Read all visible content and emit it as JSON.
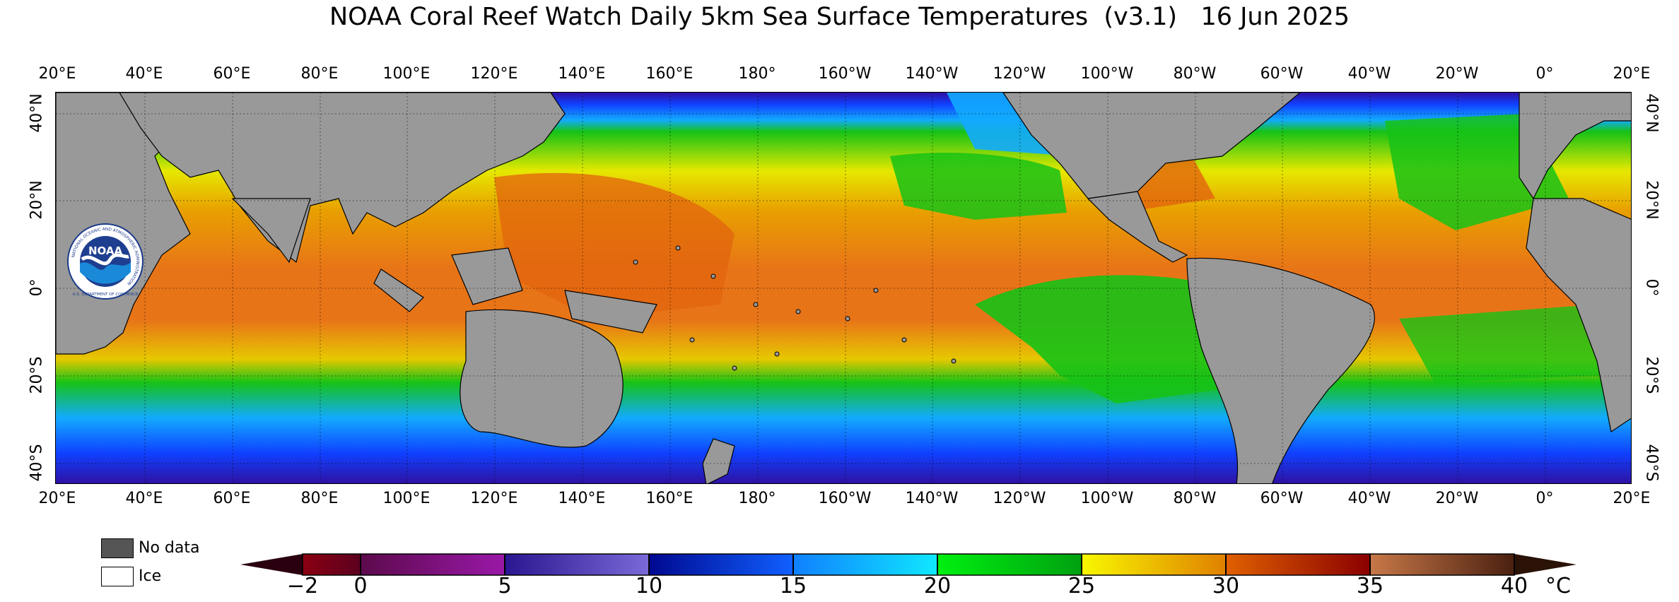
{
  "title": "NOAA Coral Reef Watch Daily 5km Sea Surface Temperatures  (v3.1)   16 Jun 2025",
  "longitude_labels": [
    "20°E",
    "40°E",
    "60°E",
    "80°E",
    "100°E",
    "120°E",
    "140°E",
    "160°E",
    "180°",
    "160°W",
    "140°W",
    "120°W",
    "100°W",
    "80°W",
    "60°W",
    "40°W",
    "20°W",
    "0°",
    "20°E"
  ],
  "latitude_labels": [
    "40°N",
    "20°N",
    "0°",
    "20°S",
    "40°S"
  ],
  "legend": {
    "no_data_label": "No data",
    "no_data_color": "#555555",
    "ice_label": "Ice",
    "ice_color": "#ffffff"
  },
  "colorbar": {
    "tick_labels": [
      "−2",
      "0",
      "5",
      "10",
      "15",
      "20",
      "25",
      "30",
      "35",
      "40"
    ],
    "unit": "°C",
    "colors": {
      "below_min": "#2a0010",
      "m2_0": "#6a0018",
      "0_5": "#7a1488",
      "5_10": "#5a4ccc",
      "10_15": "#0018d8",
      "15_20": "#14c8ff",
      "20_25": "#00cc10",
      "25_30": "#e8b000",
      "30_35": "#cc2a00",
      "35_40": "#7a3c20",
      "above_max": "#2a1206"
    }
  },
  "logo": {
    "text": "NOAA",
    "ring_text": "NATIONAL OCEANIC AND ATMOSPHERIC ADMINISTRATION",
    "bottom_text": "U.S. DEPARTMENT OF COMMERCE"
  },
  "colors": {
    "land": "#999999",
    "warm": "#e8741a",
    "yellow": "#e6e800",
    "green": "#16c216",
    "cyan": "#12aaff",
    "blue": "#1040ff",
    "deep": "#3010a0"
  }
}
